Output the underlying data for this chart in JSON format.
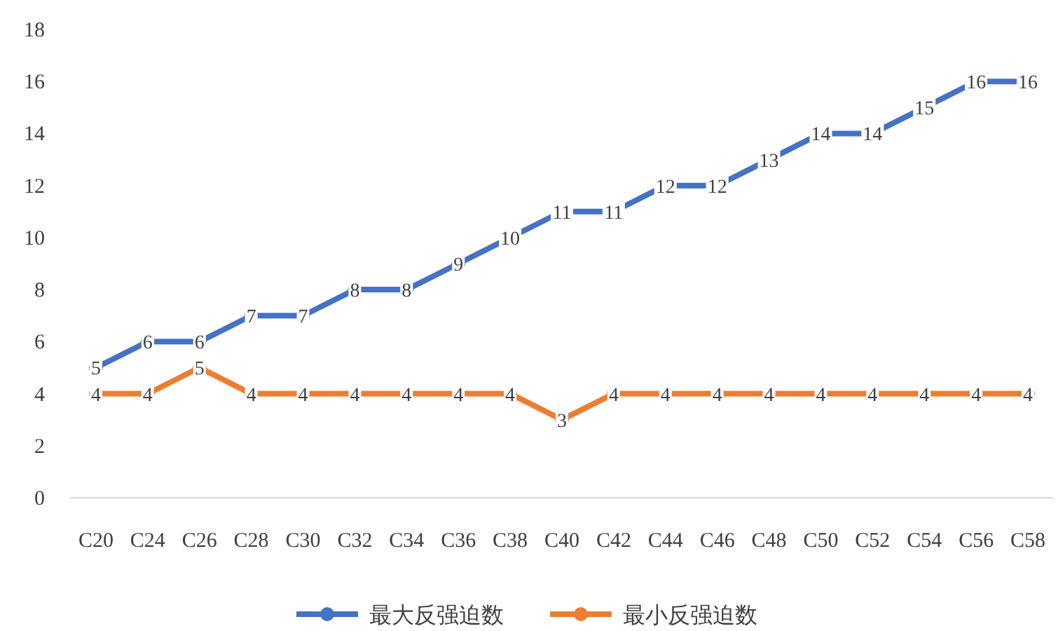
{
  "chart_data": {
    "type": "line",
    "categories": [
      "C20",
      "C24",
      "C26",
      "C28",
      "C30",
      "C32",
      "C34",
      "C36",
      "C38",
      "C40",
      "C42",
      "C44",
      "C46",
      "C48",
      "C50",
      "C52",
      "C54",
      "C56",
      "C58"
    ],
    "series": [
      {
        "name": "最大反强迫数",
        "color": "#4472c4",
        "values": [
          5,
          6,
          6,
          7,
          7,
          8,
          8,
          9,
          10,
          11,
          11,
          12,
          12,
          13,
          14,
          14,
          15,
          16,
          16
        ]
      },
      {
        "name": "最小反强迫数",
        "color": "#ed7d31",
        "values": [
          4,
          4,
          5,
          4,
          4,
          4,
          4,
          4,
          4,
          3,
          4,
          4,
          4,
          4,
          4,
          4,
          4,
          4,
          4
        ]
      }
    ],
    "ylim": [
      0,
      18
    ],
    "yticks": [
      0,
      2,
      4,
      6,
      8,
      10,
      12,
      14,
      16,
      18
    ],
    "data_labels": true,
    "marker": "circle",
    "legend": "bottom",
    "grid": false
  }
}
